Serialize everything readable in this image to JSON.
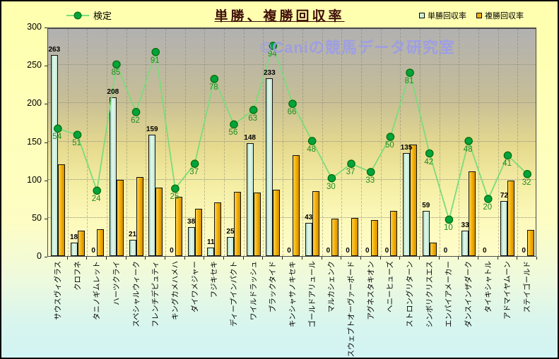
{
  "title": "単勝、複勝回収率",
  "watermark": "©Caniの競馬データ研究室",
  "legend": {
    "kentei_label": "検定",
    "tansho_label": "単勝回収率",
    "fukusho_label": "複勝回収率"
  },
  "y_axis": {
    "tick_labels": [
      "0",
      "50",
      "100",
      "150",
      "200",
      "250",
      "300"
    ],
    "min": 0,
    "max": 300,
    "interval": 50
  },
  "colors": {
    "tansho_bar": "#cfeedd",
    "fukusho_bar": "#f3ab00",
    "kentei_line": "#7bdc7b",
    "kentei_dot_fill": "#00a33c",
    "kentei_dot_edge": "#046b04",
    "green_label": "#1f8c1f",
    "title_color": "#401008",
    "watermark_color": "#9c9cea",
    "plot_top": "#b1b1b1",
    "plot_bottom": "#fffcca",
    "background_top": "#ffffae",
    "background_bottom": "#d2f4f4"
  },
  "chart_data": {
    "type": "bar",
    "subtype": "bar-line-combo",
    "categories": [
      "サウスヴィグラス",
      "クロフネ",
      "タニノギムレット",
      "ハーツクライ",
      "スペシャルウィーク",
      "フレンチデピュティ",
      "キングカメハメハ",
      "ダイワメジャー",
      "フジキセキ",
      "ディープインパクト",
      "ワイルドラッシュ",
      "ブラックタイド",
      "キンシャサノキセキ",
      "ゴールドアリュール",
      "マルカシェンク",
      "スウェプトオーヴァーボード",
      "アグネスタキオン",
      "ヘニーヒューズ",
      "ストロングリターン",
      "シンボリクリスエス",
      "エンパイアメーカー",
      "ダンスインザダーク",
      "タイキシャトル",
      "アドマイヤムーン",
      "ステイゴールド"
    ],
    "series": [
      {
        "name": "単勝回収率",
        "type": "bar",
        "data_labels": true,
        "values": [
          263,
          18,
          0,
          208,
          21,
          159,
          0,
          38,
          11,
          25,
          148,
          233,
          0,
          43,
          0,
          0,
          0,
          0,
          135,
          59,
          0,
          33,
          0,
          72,
          0
        ]
      },
      {
        "name": "複勝回収率",
        "type": "bar",
        "data_labels": false,
        "values": [
          120,
          33,
          35,
          100,
          103,
          90,
          78,
          62,
          70,
          84,
          83,
          87,
          132,
          85,
          49,
          50,
          47,
          59,
          146,
          18,
          0,
          111,
          0,
          99,
          34
        ]
      },
      {
        "name": "検定",
        "type": "line",
        "data_labels": true,
        "values": [
          54,
          51,
          24,
          85,
          62,
          91,
          25,
          37,
          78,
          56,
          63,
          94,
          66,
          48,
          30,
          37,
          33,
          50,
          81,
          42,
          10,
          48,
          20,
          41,
          32
        ]
      }
    ],
    "ylim": [
      0,
      300
    ],
    "secondary_ylim": [
      0,
      100
    ],
    "grid": true,
    "legend_position": "top"
  }
}
